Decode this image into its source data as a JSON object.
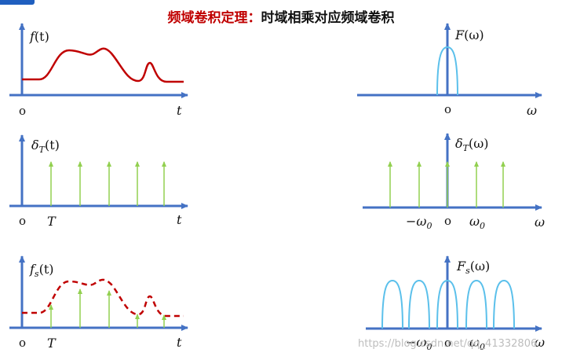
{
  "title": {
    "theorem": "频域卷积定理：",
    "statement": "时域相乘对应频域卷积"
  },
  "watermark": "https://blog.csdn.net/qq_41332806",
  "labels": {
    "f_t": {
      "f": "f",
      "args": "(t)"
    },
    "F_w": {
      "f": "F",
      "args": "(ω)"
    },
    "delta_t": {
      "f": "δ",
      "sub": "T",
      "args": "(t)"
    },
    "delta_w": {
      "f": "δ",
      "sub": "T",
      "args": "(ω)"
    },
    "fs_t": {
      "f": "f",
      "sub": "s",
      "args": "(t)"
    },
    "Fs_w": {
      "f": "F",
      "sub": "s",
      "args": "(ω)"
    },
    "origin": "o",
    "t": "t",
    "T": "T",
    "omega": "ω",
    "neg_omega0": {
      "base": "−ω",
      "sub": "0"
    },
    "omega0": {
      "base": "ω",
      "sub": "0"
    }
  },
  "colors": {
    "axis": "#4472c4",
    "signal": "#c00000",
    "impulse": "#92d050",
    "spectrum": "#5bc0eb"
  }
}
